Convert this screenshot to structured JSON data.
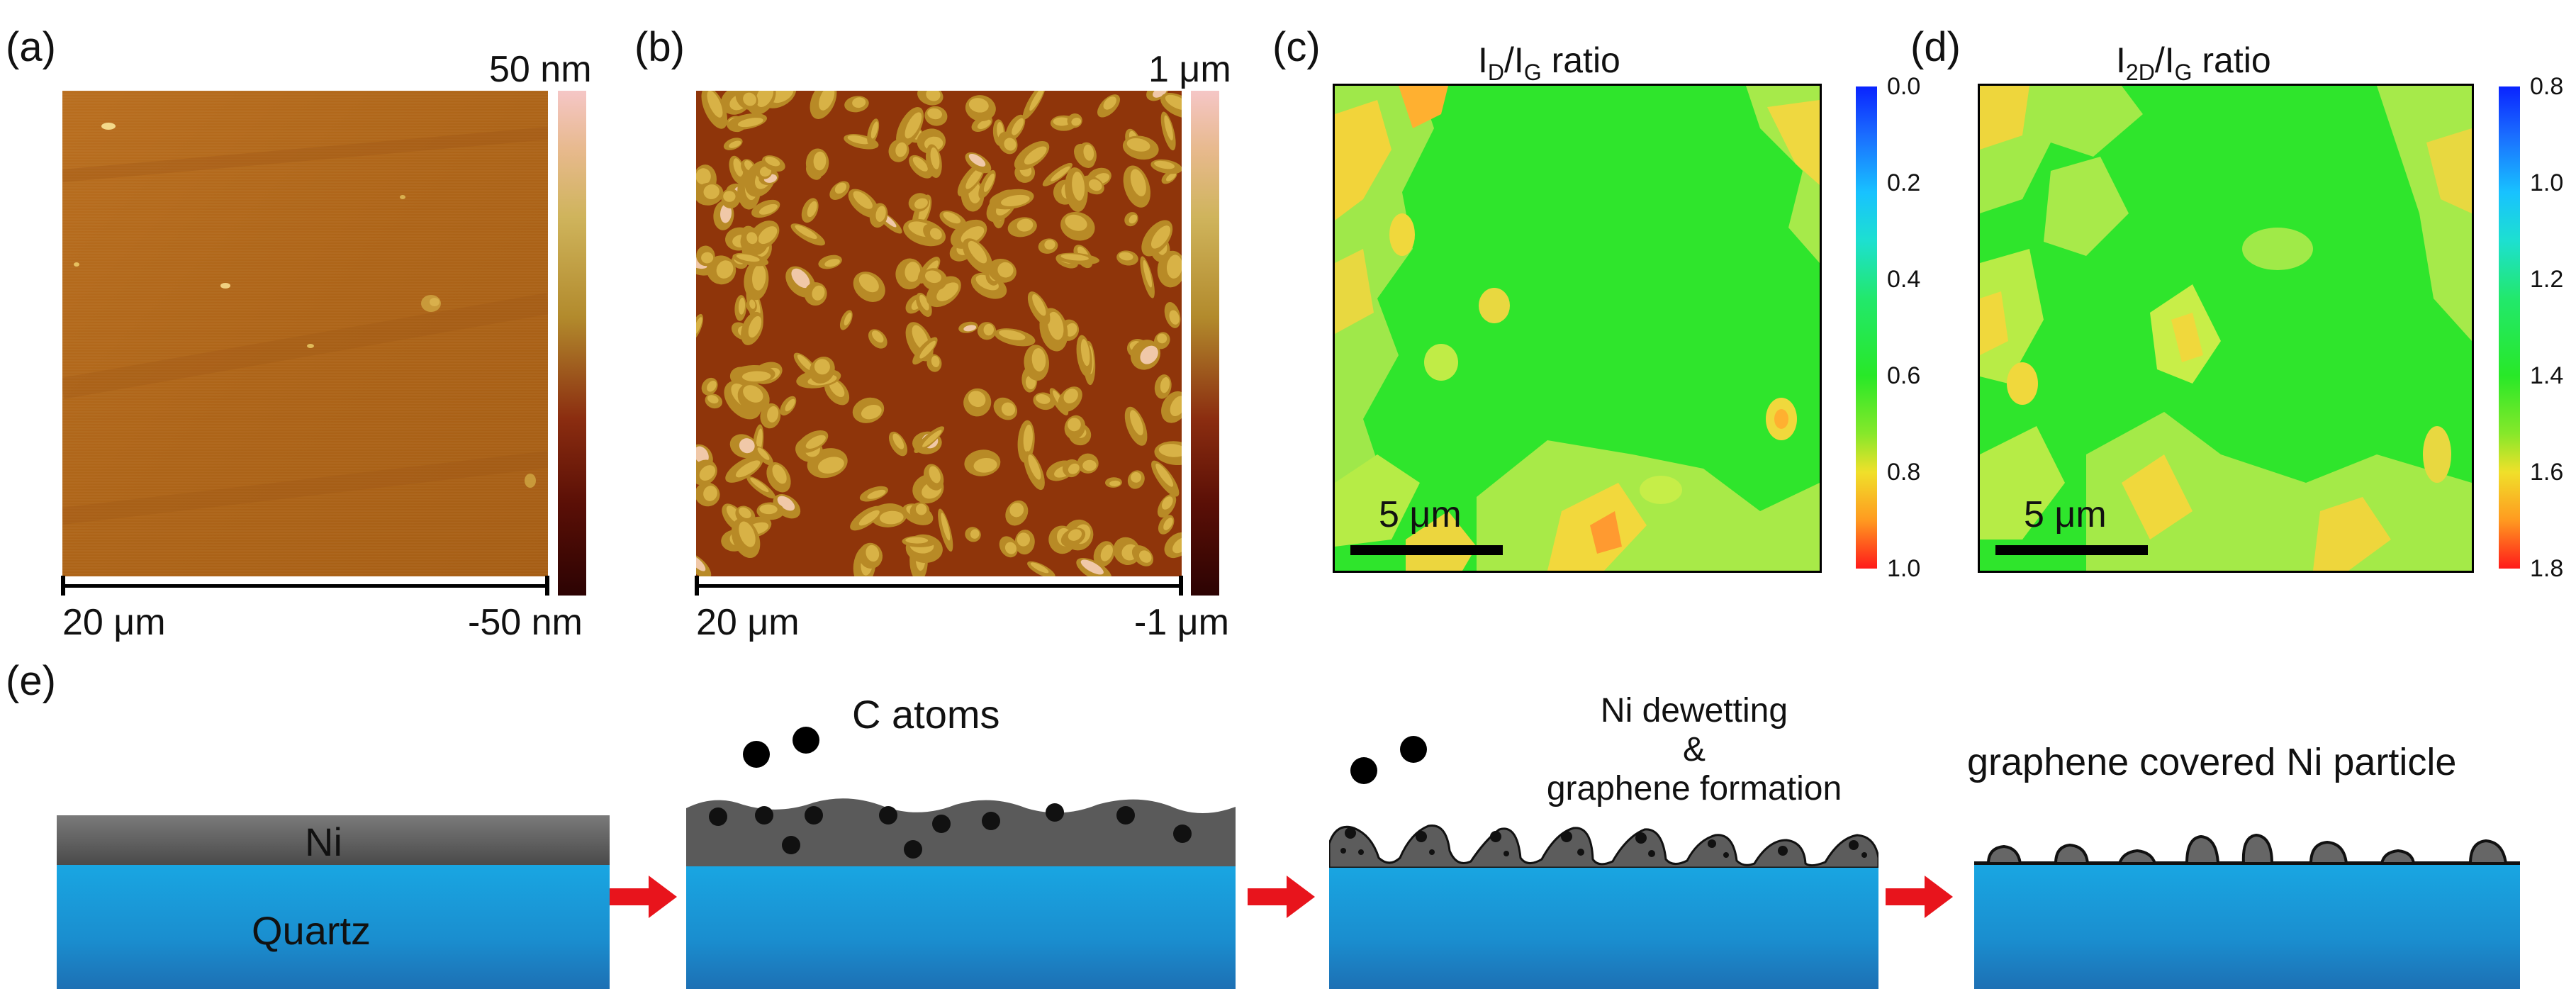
{
  "panels": {
    "a": {
      "label": "(a)",
      "scale_top": "50 nm",
      "scale_bottom": "-50 nm",
      "scalebar_label": "20 μm"
    },
    "b": {
      "label": "(b)",
      "scale_top": "1 μm",
      "scale_bottom": "-1 μm",
      "scalebar_label": "20 μm"
    },
    "c": {
      "label": "(c)",
      "title_main": "I",
      "title_sub1": "D",
      "title_mid": "/I",
      "title_sub2": "G",
      "title_end": " ratio",
      "scalebar_label": "5 μm",
      "colorbar_ticks": [
        "0.0",
        "0.2",
        "0.4",
        "0.6",
        "0.8",
        "1.0"
      ]
    },
    "d": {
      "label": "(d)",
      "title_main": "I",
      "title_sub1": "2D",
      "title_mid": "/I",
      "title_sub2": "G",
      "title_end": " ratio",
      "scalebar_label": "5 μm",
      "colorbar_ticks": [
        "0.8",
        "1.0",
        "1.2",
        "1.4",
        "1.6",
        "1.8"
      ]
    },
    "e": {
      "label": "(e)",
      "layer_ni": "Ni",
      "layer_quartz": "Quartz",
      "step2_text": "C atoms",
      "step3_line1": "Ni dewetting",
      "step3_line2": "&",
      "step3_line3": "graphene formation",
      "step4_text": "graphene covered Ni particle"
    }
  },
  "colors": {
    "afm_a_base": "#b0661a",
    "afm_b_base": "#9a3d0a",
    "raman_green": "#2be82b",
    "quartz_blue": "#1ea0dc",
    "ni_gray": "#555555",
    "arrow_red": "#e8141c"
  }
}
